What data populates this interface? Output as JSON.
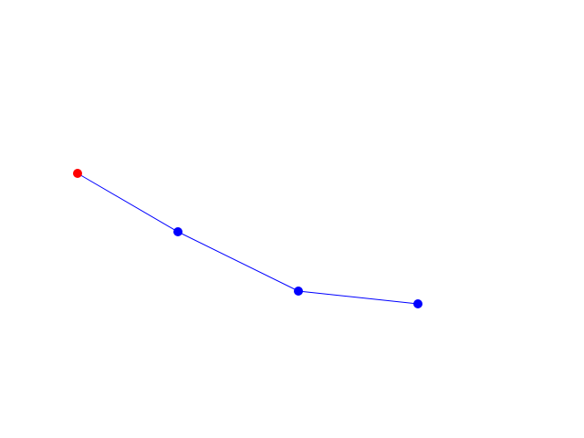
{
  "line_color": "#0000ff",
  "start_point_color": "#ff0000"
}
